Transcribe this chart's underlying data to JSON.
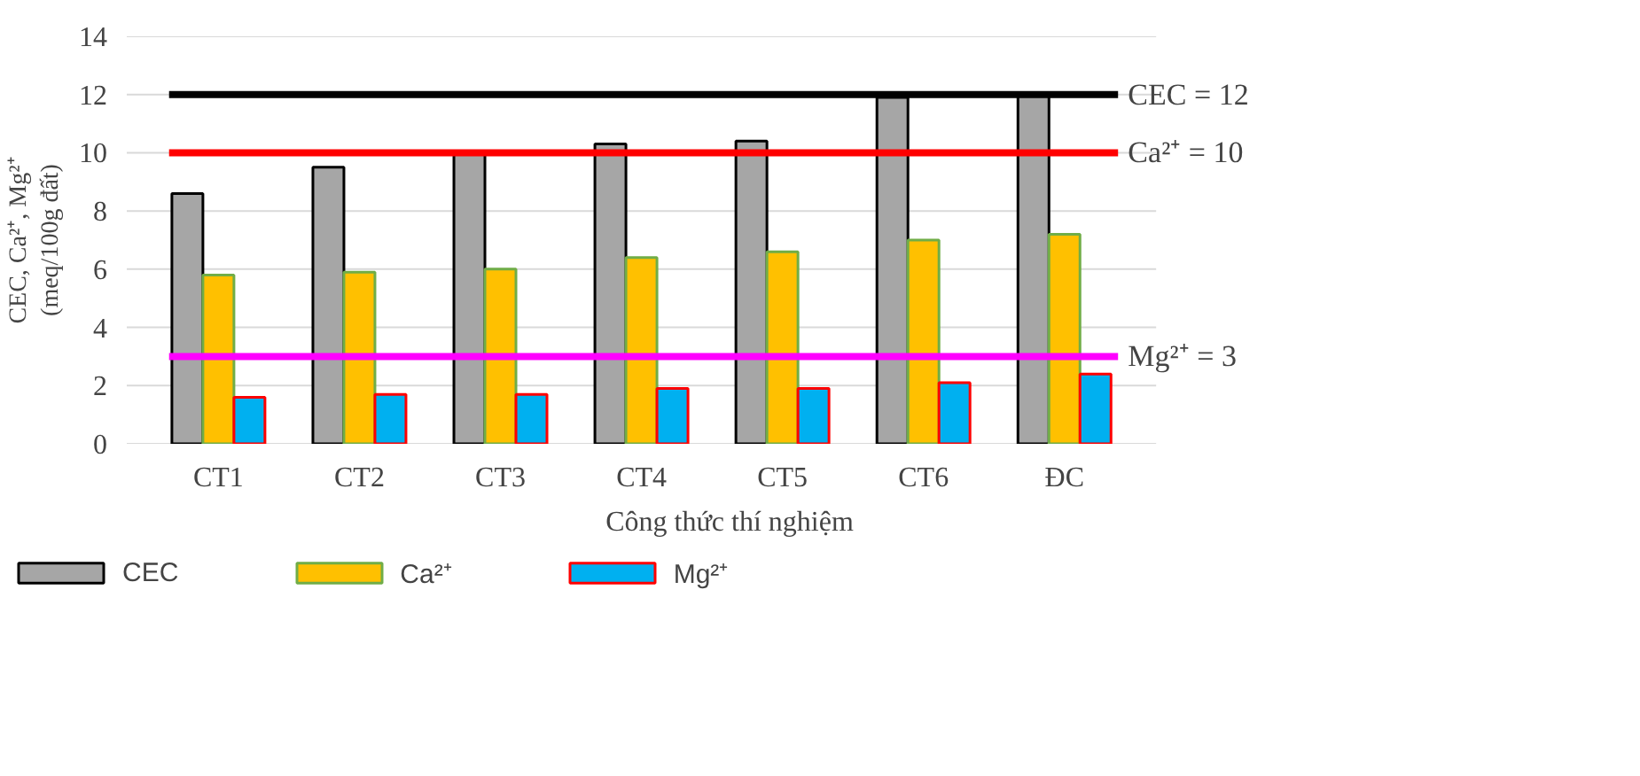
{
  "chart_data": {
    "type": "bar",
    "xlabel": "Công thức thí nghiệm",
    "ylabel": "CEC, Ca²⁺, Mg²⁺\n(meq/100g đất)",
    "categories": [
      "CT1",
      "CT2",
      "CT3",
      "CT4",
      "CT5",
      "CT6",
      "ĐC"
    ],
    "series": [
      {
        "name": "CEC",
        "color": "#a6a6a6",
        "values": [
          8.6,
          9.5,
          10.0,
          10.3,
          10.4,
          11.9,
          12.0
        ]
      },
      {
        "name": "Ca²⁺",
        "color": "#ffc000",
        "values": [
          5.8,
          5.9,
          6.0,
          6.4,
          6.6,
          7.0,
          7.2
        ]
      },
      {
        "name": "Mg²⁺",
        "color": "#00b0f0",
        "values": [
          1.6,
          1.7,
          1.7,
          1.9,
          1.9,
          2.1,
          2.4
        ]
      }
    ],
    "ylim": [
      0,
      14
    ],
    "yticks": [
      0,
      2,
      4,
      6,
      8,
      10,
      12,
      14
    ],
    "grid": "y",
    "legend": "bottom",
    "ref_lines": [
      {
        "axis": "y",
        "value": 12,
        "label": "CEC = 12",
        "color": "#000000"
      },
      {
        "axis": "y",
        "value": 10,
        "label": "Ca²⁺ = 10",
        "color": "#ff0000"
      },
      {
        "axis": "y",
        "value": 3,
        "label": "Mg²⁺ = 3",
        "color": "#ff00ff"
      }
    ]
  }
}
